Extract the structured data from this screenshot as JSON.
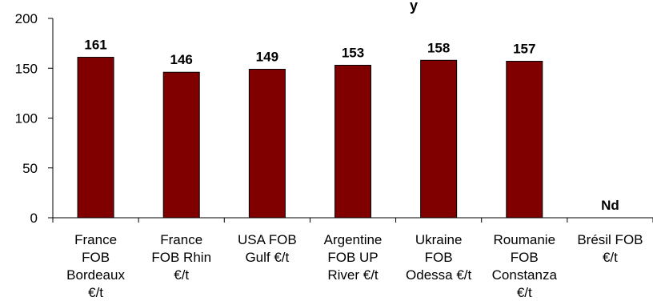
{
  "chart_data": {
    "type": "bar",
    "title_fragment": "y",
    "categories": [
      [
        "France",
        "FOB",
        "Bordeaux",
        "€/t"
      ],
      [
        "France",
        "FOB Rhin",
        "€/t"
      ],
      [
        "USA FOB",
        "Gulf €/t"
      ],
      [
        "Argentine",
        "FOB UP",
        "River €/t"
      ],
      [
        "Ukraine",
        "FOB",
        "Odessa €/t"
      ],
      [
        "Roumanie",
        "FOB",
        "Constanza",
        "€/t"
      ],
      [
        "Brésil FOB",
        "€/t"
      ]
    ],
    "values": [
      161,
      146,
      149,
      153,
      158,
      157,
      null
    ],
    "data_labels": [
      "161",
      "146",
      "149",
      "153",
      "158",
      "157",
      "Nd"
    ],
    "y_ticks": [
      0,
      50,
      100,
      150,
      200
    ],
    "ylim": [
      0,
      200
    ],
    "bar_color": "#800000",
    "grid": false,
    "legend": "none"
  }
}
